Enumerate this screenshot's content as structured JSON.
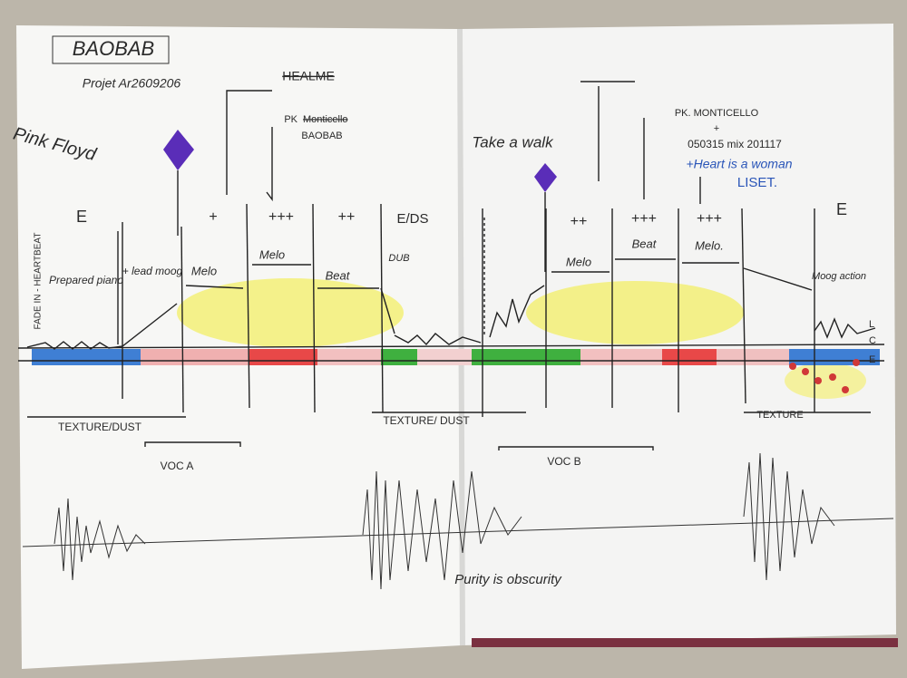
{
  "header": {
    "title": "BAOBAB",
    "subtitle": "Projet Ar2609206",
    "artist": "Pink Floyd",
    "struck_left": "HEALME"
  },
  "left_page": {
    "markers": [
      "E",
      "+",
      "+++",
      "++",
      "E/DS"
    ],
    "fade_label": "FADE IN - HEARTBEAT",
    "prepared": "Prepared piano",
    "lead": "+ lead moog",
    "sections": [
      "Melo",
      "Melo",
      "Beat",
      "DUB"
    ],
    "pk": "PK",
    "pk_struck": "Monticello",
    "pk_title": "BAOBAB",
    "texture": "TEXTURE/DUST",
    "voc": "VOC A"
  },
  "right_page": {
    "take": "Take a walk",
    "pk": "PK. MONTICELLO",
    "plus": "+",
    "mix": "050315 mix 201117",
    "heart": "+Heart is a woman",
    "liset": "LISET.",
    "markers": [
      "++",
      "+++",
      "+++",
      "E"
    ],
    "sections": [
      "Melo",
      "Beat",
      "Melo."
    ],
    "moog": "Moog action",
    "levels": [
      "L",
      "C",
      "E"
    ],
    "texture_left": "TEXTURE/ DUST",
    "texture": "TEXTURE",
    "voc": "VOC B",
    "quote": "Purity is obscurity"
  }
}
